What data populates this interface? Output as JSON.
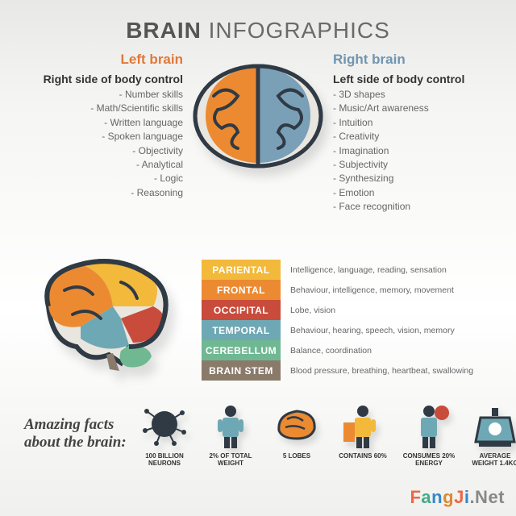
{
  "title": {
    "bold": "BRAIN",
    "rest": " INFOGRAPHICS"
  },
  "left": {
    "label": "Left brain",
    "heading": "Right side of body control",
    "items": [
      "Number skills",
      "Math/Scientific skills",
      "Written language",
      "Spoken language",
      "Objectivity",
      "Analytical",
      "Logic",
      "Reasoning"
    ],
    "color": "#e07838"
  },
  "right": {
    "label": "Right brain",
    "heading": "Left side of body control",
    "items": [
      "3D shapes",
      "Music/Art awareness",
      "Intuition",
      "Creativity",
      "Imagination",
      "Subjectivity",
      "Synthesizing",
      "Emotion",
      "Face recognition"
    ],
    "color": "#6f95b0"
  },
  "top_brain": {
    "left_color": "#ec8a32",
    "right_color": "#7aa0b8",
    "outline": "#2f3a44",
    "bg": "#e9e6df"
  },
  "side_brain": {
    "outline": "#2f3a44",
    "parietal": "#f3b93b",
    "frontal": "#ec8a32",
    "occipital": "#c94b3c",
    "temporal": "#6fa8b5",
    "cerebellum": "#6fb892",
    "stem": "#8a7a6a"
  },
  "lobes": [
    {
      "name": "PARIENTAL",
      "color": "#f3b93b",
      "desc": "Intelligence, language, reading, sensation"
    },
    {
      "name": "FRONTAL",
      "color": "#ec8a32",
      "desc": "Behaviour, intelligence, memory, movement"
    },
    {
      "name": "OCCIPITAL",
      "color": "#c94b3c",
      "desc": "Lobe, vision"
    },
    {
      "name": "TEMPORAL",
      "color": "#6fa8b5",
      "desc": "Behaviour, hearing, speech, vision, memory"
    },
    {
      "name": "CEREBELLUM",
      "color": "#6fb892",
      "desc": "Balance, coordination"
    },
    {
      "name": "BRAIN STEM",
      "color": "#8a7a6a",
      "desc": "Blood pressure, breathing, heartbeat, swallowing"
    }
  ],
  "facts_title": {
    "l1": "Amazing facts",
    "l2": "about the brain:"
  },
  "facts": [
    {
      "label": "100 BILLION NEURONS",
      "color": "#2f3a44"
    },
    {
      "label": "2% OF TOTAL WEIGHT",
      "color": "#6fa8b5"
    },
    {
      "label": "5 LOBES",
      "color": "#ec8a32"
    },
    {
      "label": "CONTAINS 60%",
      "color": "#f3b93b"
    },
    {
      "label": "CONSUMES 20% ENERGY",
      "color": "#c94b3c"
    },
    {
      "label": "AVERAGE WEIGHT 1.4KG",
      "color": "#6fa8b5"
    }
  ],
  "watermark": "FangJi.Net"
}
